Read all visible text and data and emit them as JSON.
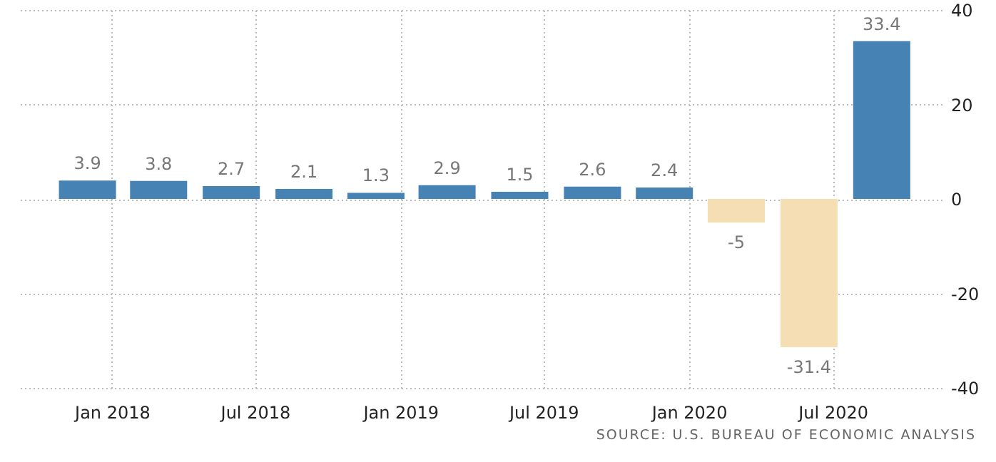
{
  "chart_data": {
    "type": "bar",
    "x": [
      "2017-12",
      "2018-03",
      "2018-06",
      "2018-09",
      "2018-12",
      "2019-03",
      "2019-06",
      "2019-09",
      "2019-12",
      "2020-03",
      "2020-06",
      "2020-09"
    ],
    "values": [
      3.9,
      3.8,
      2.7,
      2.1,
      1.3,
      2.9,
      1.5,
      2.6,
      2.4,
      -5,
      -31.4,
      33.4
    ],
    "colors": [
      "#4682b4",
      "#4682b4",
      "#4682b4",
      "#4682b4",
      "#4682b4",
      "#4682b4",
      "#4682b4",
      "#4682b4",
      "#4682b4",
      "#f5deb3",
      "#f5deb3",
      "#4682b4"
    ],
    "data_labels": true,
    "xlim": [
      "2017-09-03",
      "2020-11-16"
    ],
    "xticks": [
      {
        "value": "2018-01",
        "label": "Jan 2018"
      },
      {
        "value": "2018-07",
        "label": "Jul 2018"
      },
      {
        "value": "2019-01",
        "label": "Jan 2019"
      },
      {
        "value": "2019-07",
        "label": "Jul 2019"
      },
      {
        "value": "2020-01",
        "label": "Jan 2020"
      },
      {
        "value": "2020-07",
        "label": "Jul 2020"
      }
    ],
    "ylim": [
      -40,
      40
    ],
    "yticks": [
      -40,
      -20,
      0,
      20,
      40
    ],
    "grid": true,
    "annotations": [
      "SOURCE: U.S. BUREAU OF ECONOMIC ANALYSIS"
    ]
  }
}
